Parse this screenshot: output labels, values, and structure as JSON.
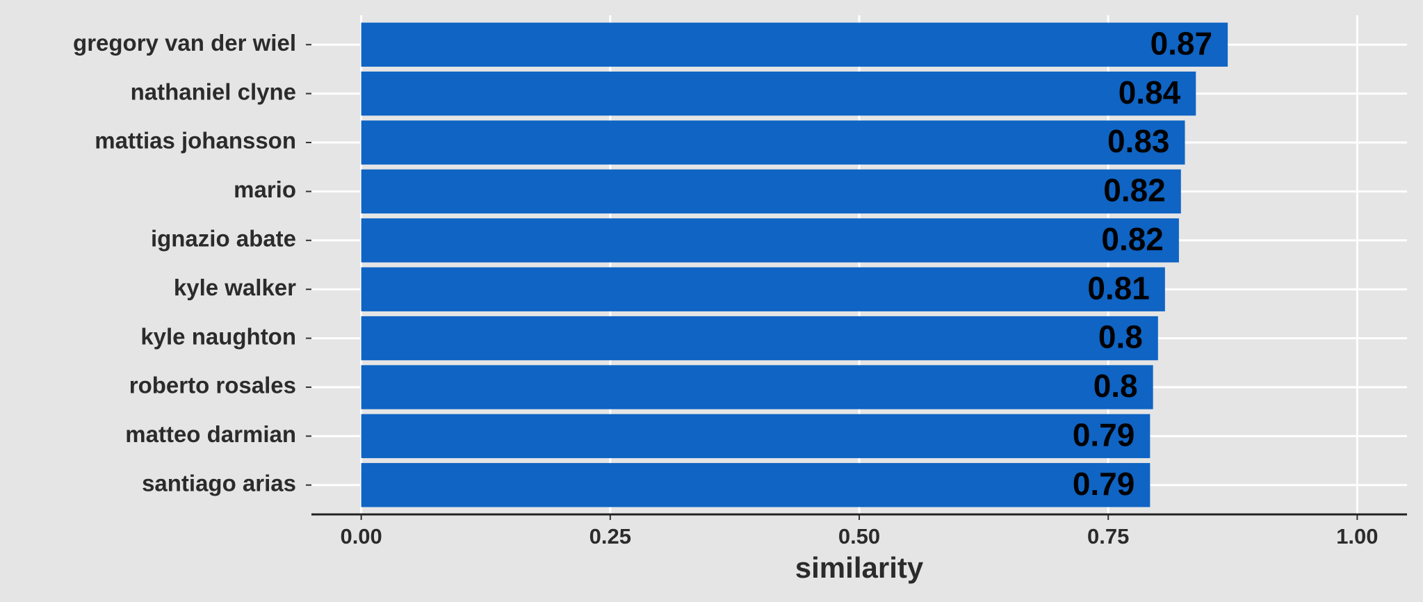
{
  "chart_data": {
    "type": "barh",
    "x_label": "similarity",
    "categories": [
      "gregory van der wiel",
      "nathaniel clyne",
      "mattias johansson",
      "mario",
      "ignazio abate",
      "kyle walker",
      "kyle naughton",
      "roberto rosales",
      "matteo darmian",
      "santiago arias"
    ],
    "values": [
      0.87,
      0.838,
      0.827,
      0.823,
      0.821,
      0.807,
      0.8,
      0.795,
      0.792,
      0.792
    ],
    "value_labels": [
      "0.87",
      "0.84",
      "0.83",
      "0.82",
      "0.82",
      "0.81",
      "0.8",
      "0.8",
      "0.79",
      "0.79"
    ],
    "color": "#0f64c4",
    "xlim": [
      -0.05,
      1.05
    ],
    "xticks": [
      {
        "value": 0,
        "label": "0.00"
      },
      {
        "value": 0.25,
        "label": "0.25"
      },
      {
        "value": 0.5,
        "label": "0.50"
      },
      {
        "value": 0.75,
        "label": "0.75"
      },
      {
        "value": 1,
        "label": "1.00"
      }
    ],
    "grid": true
  }
}
